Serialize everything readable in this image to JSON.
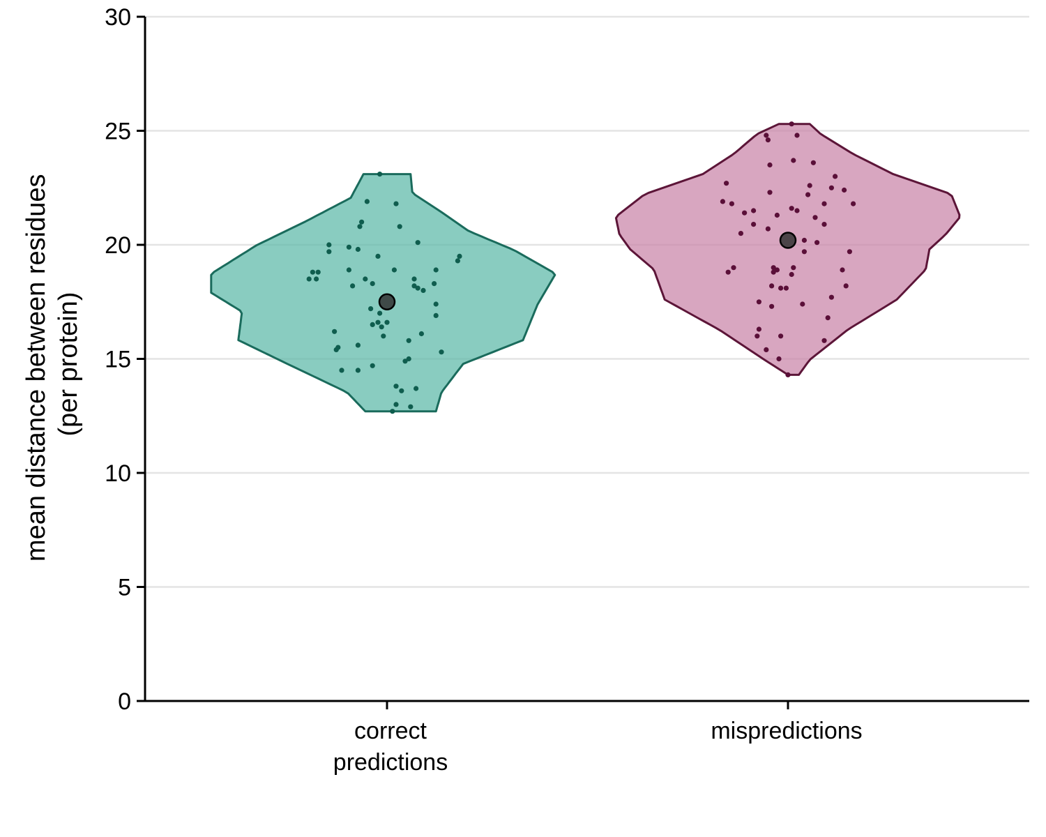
{
  "chart_data": {
    "type": "violin",
    "title": "",
    "xlabel": "",
    "ylabel": [
      "mean distance between residues",
      "(per protein)"
    ],
    "ylim": [
      0,
      30
    ],
    "yticks": [
      0,
      5,
      10,
      15,
      20,
      25,
      30
    ],
    "grid": "horizontal",
    "categories": [
      [
        "correct",
        "predictions"
      ],
      [
        "mispredictions"
      ]
    ],
    "series": [
      {
        "category_index": 0,
        "fill": "#5bb8a8",
        "stroke": "#1a6b5c",
        "point_color": "#0f5d4e",
        "mean": 17.5,
        "range": [
          12.7,
          23.1
        ],
        "density_profile": [
          [
            12.7,
            0.36
          ],
          [
            13.2,
            0.32
          ],
          [
            13.8,
            0.24
          ],
          [
            14.5,
            0.16
          ],
          [
            15.2,
            0.1
          ],
          [
            16.0,
            0.03
          ],
          [
            16.8,
            0.0
          ],
          [
            17.4,
            0.06
          ],
          [
            18.0,
            0.13
          ],
          [
            18.6,
            0.14
          ],
          [
            19.2,
            0.06
          ],
          [
            19.8,
            0.09
          ],
          [
            20.4,
            0.02
          ],
          [
            21.2,
            -0.05
          ],
          [
            22.0,
            -0.09
          ],
          [
            22.6,
            -0.1
          ],
          [
            23.1,
            -0.08
          ]
        ],
        "points": [
          [
            12.7,
            0.03
          ],
          [
            12.9,
            0.13
          ],
          [
            13.0,
            0.05
          ],
          [
            13.6,
            0.08
          ],
          [
            13.7,
            0.16
          ],
          [
            13.8,
            0.05
          ],
          [
            14.5,
            -0.25
          ],
          [
            14.5,
            -0.16
          ],
          [
            14.7,
            -0.08
          ],
          [
            14.9,
            0.1
          ],
          [
            15.0,
            0.12
          ],
          [
            15.3,
            0.3
          ],
          [
            15.4,
            -0.28
          ],
          [
            15.5,
            -0.27
          ],
          [
            15.6,
            -0.16
          ],
          [
            15.8,
            0.12
          ],
          [
            16.0,
            -0.02
          ],
          [
            16.1,
            0.19
          ],
          [
            16.2,
            -0.29
          ],
          [
            16.4,
            -0.03
          ],
          [
            16.5,
            -0.08
          ],
          [
            16.6,
            0.0
          ],
          [
            16.6,
            -0.05
          ],
          [
            16.9,
            0.27
          ],
          [
            17.0,
            -0.04
          ],
          [
            17.2,
            -0.09
          ],
          [
            17.4,
            0.27
          ],
          [
            18.0,
            0.2
          ],
          [
            18.1,
            0.17
          ],
          [
            18.2,
            -0.19
          ],
          [
            18.2,
            0.15
          ],
          [
            18.3,
            0.26
          ],
          [
            18.3,
            -0.08
          ],
          [
            18.5,
            -0.39
          ],
          [
            18.5,
            -0.43
          ],
          [
            18.5,
            -0.12
          ],
          [
            18.5,
            0.15
          ],
          [
            18.8,
            -0.41
          ],
          [
            18.8,
            -0.38
          ],
          [
            18.9,
            -0.21
          ],
          [
            18.9,
            0.27
          ],
          [
            18.9,
            0.04
          ],
          [
            19.3,
            0.39
          ],
          [
            19.5,
            -0.05
          ],
          [
            19.5,
            0.4
          ],
          [
            19.7,
            -0.32
          ],
          [
            19.8,
            -0.16
          ],
          [
            19.9,
            -0.21
          ],
          [
            20.0,
            -0.32
          ],
          [
            20.1,
            0.17
          ],
          [
            20.8,
            -0.15
          ],
          [
            20.8,
            0.07
          ],
          [
            21.0,
            -0.14
          ],
          [
            21.8,
            0.05
          ],
          [
            21.9,
            -0.11
          ],
          [
            23.1,
            -0.04
          ]
        ]
      },
      {
        "category_index": 1,
        "fill": "#c983a8",
        "stroke": "#5c1538",
        "point_color": "#5a0f38",
        "mean": 20.2,
        "range": [
          14.3,
          25.3
        ],
        "density_profile": [
          [
            14.3,
            0.06
          ],
          [
            14.8,
            0.12
          ],
          [
            15.4,
            0.2
          ],
          [
            16.0,
            0.28
          ],
          [
            16.6,
            0.32
          ],
          [
            17.2,
            0.34
          ],
          [
            17.8,
            0.36
          ],
          [
            18.4,
            0.38
          ],
          [
            19.0,
            0.4
          ],
          [
            19.6,
            0.41
          ],
          [
            20.2,
            0.4
          ],
          [
            20.8,
            0.41
          ],
          [
            21.3,
            0.43
          ],
          [
            21.8,
            0.41
          ],
          [
            22.3,
            0.37
          ],
          [
            22.8,
            0.27
          ],
          [
            23.4,
            0.17
          ],
          [
            24.0,
            0.11
          ],
          [
            24.6,
            0.06
          ],
          [
            25.0,
            0.03
          ],
          [
            25.3,
            0.02
          ]
        ],
        "points": [
          [
            14.3,
            0.0
          ],
          [
            15.0,
            -0.05
          ],
          [
            15.4,
            -0.12
          ],
          [
            15.8,
            0.2
          ],
          [
            16.0,
            -0.04
          ],
          [
            16.0,
            -0.17
          ],
          [
            16.3,
            -0.16
          ],
          [
            16.8,
            0.22
          ],
          [
            17.3,
            -0.09
          ],
          [
            17.4,
            0.08
          ],
          [
            17.5,
            -0.16
          ],
          [
            17.7,
            0.24
          ],
          [
            18.1,
            -0.04
          ],
          [
            18.1,
            -0.01
          ],
          [
            18.2,
            -0.09
          ],
          [
            18.2,
            0.32
          ],
          [
            18.7,
            0.02
          ],
          [
            18.8,
            -0.33
          ],
          [
            18.8,
            -0.08
          ],
          [
            18.9,
            0.3
          ],
          [
            18.9,
            -0.06
          ],
          [
            19.0,
            -0.3
          ],
          [
            19.0,
            0.03
          ],
          [
            19.0,
            -0.08
          ],
          [
            19.7,
            0.09
          ],
          [
            19.7,
            0.34
          ],
          [
            20.1,
            0.16
          ],
          [
            20.2,
            0.09
          ],
          [
            20.5,
            -0.26
          ],
          [
            20.7,
            -0.11
          ],
          [
            20.9,
            -0.19
          ],
          [
            20.9,
            0.2
          ],
          [
            21.2,
            0.15
          ],
          [
            21.3,
            -0.06
          ],
          [
            21.4,
            -0.24
          ],
          [
            21.5,
            -0.19
          ],
          [
            21.5,
            0.05
          ],
          [
            21.6,
            0.02
          ],
          [
            21.8,
            0.2
          ],
          [
            21.8,
            0.36
          ],
          [
            21.8,
            -0.31
          ],
          [
            21.9,
            -0.36
          ],
          [
            22.2,
            0.11
          ],
          [
            22.3,
            -0.1
          ],
          [
            22.4,
            0.31
          ],
          [
            22.5,
            0.24
          ],
          [
            22.6,
            0.12
          ],
          [
            22.7,
            -0.34
          ],
          [
            23.0,
            0.26
          ],
          [
            23.5,
            -0.1
          ],
          [
            23.6,
            0.14
          ],
          [
            23.7,
            0.03
          ],
          [
            24.6,
            -0.11
          ],
          [
            24.8,
            -0.12
          ],
          [
            24.8,
            0.05
          ],
          [
            25.3,
            0.02
          ]
        ]
      }
    ]
  }
}
